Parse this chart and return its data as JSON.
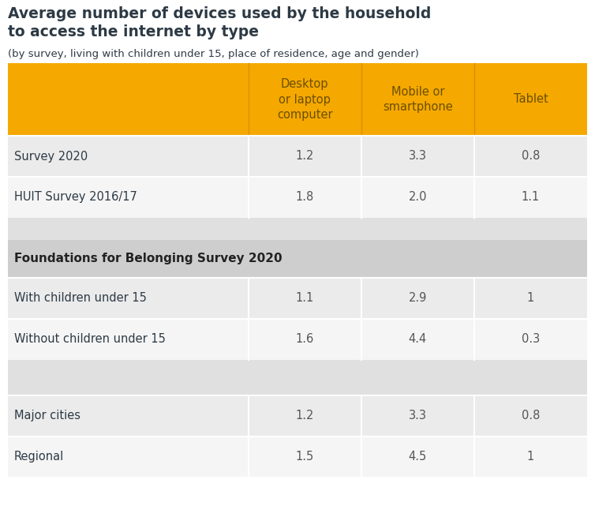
{
  "title_bold": "Average number of devices used by the household\nto access the internet by type",
  "subtitle": "(by survey, living with children under 15, place of residence, age and gender)",
  "col_headers": [
    "Desktop\nor laptop\ncomputer",
    "Mobile or\nsmartphone",
    "Tablet"
  ],
  "header_bg": "#F5A800",
  "header_text_color": "#6B5000",
  "section_header_bg": "#CECECE",
  "section_header_text": "Foundations for Belonging Survey 2020",
  "section_header_text_color": "#222222",
  "gap_bg": "#E0E0E0",
  "row_bg_odd": "#EBEBEB",
  "row_bg_even": "#F5F5F5",
  "text_color": "#2D3A45",
  "value_color": "#555555",
  "figsize": [
    7.54,
    6.55
  ],
  "dpi": 100,
  "title_fontsize": 13.5,
  "subtitle_fontsize": 9.5,
  "header_fontsize": 10.5,
  "data_fontsize": 10.5,
  "section_fontsize": 11.0
}
